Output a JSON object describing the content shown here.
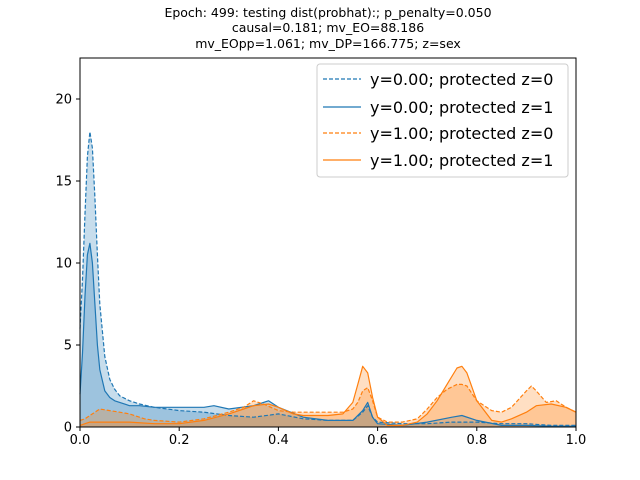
{
  "chart_data": {
    "type": "area",
    "title_lines": [
      "Epoch: 499: testing dist(probhat):; p_penalty=0.050",
      "causal=0.181; mv_EO=88.186",
      "mv_EOpp=1.061; mv_DP=166.775; z=sex"
    ],
    "xlim": [
      0,
      1
    ],
    "ylim": [
      0,
      22.5
    ],
    "x_ticks": [
      0.0,
      0.2,
      0.4,
      0.6,
      0.8,
      1.0
    ],
    "x_tick_labels": [
      "0.0",
      "0.2",
      "0.4",
      "0.6",
      "0.8",
      "1.0"
    ],
    "y_ticks": [
      0,
      5,
      10,
      15,
      20
    ],
    "y_tick_labels": [
      "0",
      "5",
      "10",
      "15",
      "20"
    ],
    "grid": false,
    "legend_position": "upper right",
    "colors": {
      "blue": "#1f77b4",
      "orange": "#ff7f0e"
    },
    "series": [
      {
        "name": "y=0.00; protected z=0",
        "color": "#1f77b4",
        "linestyle": "dashed",
        "x": [
          0,
          0.005,
          0.01,
          0.015,
          0.02,
          0.025,
          0.03,
          0.035,
          0.04,
          0.05,
          0.06,
          0.07,
          0.08,
          0.1,
          0.12,
          0.15,
          0.2,
          0.25,
          0.3,
          0.35,
          0.4,
          0.45,
          0.5,
          0.55,
          0.57,
          0.58,
          0.59,
          0.6,
          0.65,
          0.7,
          0.75,
          0.8,
          0.85,
          0.9,
          0.95,
          1.0
        ],
        "y": [
          6.0,
          9.0,
          13.0,
          16.5,
          18.0,
          17.0,
          14.0,
          10.5,
          7.5,
          4.3,
          2.9,
          2.3,
          1.9,
          1.6,
          1.4,
          1.2,
          1.0,
          0.9,
          0.7,
          0.6,
          0.8,
          0.5,
          0.4,
          0.4,
          0.9,
          1.3,
          0.6,
          0.3,
          0.2,
          0.2,
          0.3,
          0.3,
          0.2,
          0.2,
          0.1,
          0.1
        ]
      },
      {
        "name": "y=0.00; protected z=1",
        "color": "#1f77b4",
        "linestyle": "solid",
        "x": [
          0,
          0.005,
          0.01,
          0.015,
          0.02,
          0.025,
          0.03,
          0.035,
          0.04,
          0.05,
          0.06,
          0.07,
          0.08,
          0.1,
          0.12,
          0.15,
          0.2,
          0.25,
          0.27,
          0.3,
          0.35,
          0.38,
          0.4,
          0.45,
          0.5,
          0.55,
          0.57,
          0.58,
          0.59,
          0.6,
          0.65,
          0.7,
          0.75,
          0.77,
          0.8,
          0.85,
          0.9,
          0.95,
          1.0
        ],
        "y": [
          2.0,
          4.5,
          8.0,
          10.5,
          11.2,
          10.0,
          7.5,
          5.0,
          3.5,
          2.2,
          1.8,
          1.6,
          1.5,
          1.3,
          1.3,
          1.2,
          1.2,
          1.2,
          1.3,
          1.1,
          1.3,
          1.6,
          1.2,
          0.6,
          0.4,
          0.4,
          1.0,
          1.5,
          0.6,
          0.2,
          0.1,
          0.3,
          0.6,
          0.7,
          0.4,
          0.1,
          0.1,
          0.05,
          0.05
        ]
      },
      {
        "name": "y=1.00; protected z=0",
        "color": "#ff7f0e",
        "linestyle": "dashed",
        "x": [
          0,
          0.01,
          0.02,
          0.03,
          0.04,
          0.06,
          0.08,
          0.1,
          0.13,
          0.15,
          0.2,
          0.25,
          0.3,
          0.33,
          0.35,
          0.37,
          0.4,
          0.43,
          0.45,
          0.5,
          0.53,
          0.55,
          0.56,
          0.57,
          0.58,
          0.59,
          0.6,
          0.62,
          0.65,
          0.68,
          0.7,
          0.72,
          0.74,
          0.76,
          0.77,
          0.78,
          0.8,
          0.83,
          0.85,
          0.87,
          0.9,
          0.91,
          0.92,
          0.94,
          0.96,
          0.98,
          1.0
        ],
        "y": [
          0.4,
          0.5,
          0.7,
          0.9,
          1.1,
          1.0,
          0.9,
          0.8,
          0.5,
          0.4,
          0.3,
          0.5,
          0.9,
          1.2,
          1.6,
          1.4,
          1.0,
          0.9,
          0.9,
          0.9,
          0.9,
          1.1,
          1.5,
          2.2,
          2.4,
          1.6,
          0.6,
          0.3,
          0.3,
          0.5,
          1.1,
          1.8,
          2.3,
          2.6,
          2.6,
          2.5,
          1.6,
          1.0,
          0.9,
          1.2,
          2.2,
          2.5,
          2.2,
          1.5,
          1.6,
          1.2,
          0.9
        ]
      },
      {
        "name": "y=1.00; protected z=1",
        "color": "#ff7f0e",
        "linestyle": "solid",
        "x": [
          0,
          0.01,
          0.02,
          0.03,
          0.05,
          0.08,
          0.1,
          0.15,
          0.2,
          0.25,
          0.3,
          0.33,
          0.35,
          0.38,
          0.4,
          0.43,
          0.45,
          0.5,
          0.53,
          0.55,
          0.56,
          0.57,
          0.58,
          0.59,
          0.6,
          0.62,
          0.65,
          0.68,
          0.7,
          0.72,
          0.74,
          0.76,
          0.77,
          0.78,
          0.8,
          0.83,
          0.85,
          0.87,
          0.9,
          0.92,
          0.95,
          0.98,
          1.0
        ],
        "y": [
          0.1,
          0.2,
          0.3,
          0.3,
          0.3,
          0.3,
          0.3,
          0.2,
          0.2,
          0.4,
          0.8,
          1.1,
          1.3,
          1.4,
          1.2,
          0.8,
          0.7,
          0.7,
          0.8,
          1.5,
          2.6,
          3.7,
          3.3,
          1.8,
          0.6,
          0.1,
          0.1,
          0.3,
          0.8,
          1.6,
          2.6,
          3.6,
          3.7,
          3.3,
          1.6,
          0.4,
          0.3,
          0.5,
          0.9,
          1.3,
          1.4,
          1.2,
          0.9
        ]
      }
    ]
  }
}
